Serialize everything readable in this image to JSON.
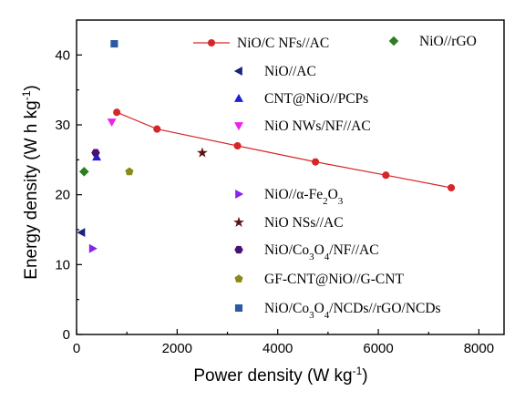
{
  "chart_data": {
    "type": "scatter",
    "xlabel": "Power density (W kg-1)",
    "ylabel": "Energy density (W h kg-1)",
    "xlim": [
      0,
      8500
    ],
    "ylim": [
      0,
      45
    ],
    "xticks": [
      0,
      2000,
      4000,
      6000,
      8000
    ],
    "yticks": [
      0,
      10,
      20,
      30,
      40
    ],
    "x_tick_labels": [
      "0",
      "2000",
      "4000",
      "6000",
      "8000"
    ],
    "y_tick_labels": [
      "0",
      "10",
      "20",
      "30",
      "40"
    ],
    "grid": false,
    "legend_placement": "inside",
    "series": [
      {
        "name": "NiO/C NFs//AC",
        "marker": "circle",
        "line": true,
        "color": "#d62728",
        "points": [
          [
            800,
            31.8
          ],
          [
            1600,
            29.4
          ],
          [
            3200,
            27.0
          ],
          [
            4750,
            24.7
          ],
          [
            6150,
            22.8
          ],
          [
            7450,
            21.0
          ]
        ]
      },
      {
        "name": "NiO//rGO",
        "marker": "diamond",
        "color": "#2e7d1f",
        "points": [
          [
            150,
            23.3
          ]
        ]
      },
      {
        "name": "NiO//AC",
        "marker": "triangle-left",
        "color": "#1a237e",
        "points": [
          [
            100,
            14.6
          ]
        ]
      },
      {
        "name": "CNT@NiO//PCPs",
        "marker": "triangle-up",
        "color": "#1f1fd6",
        "points": [
          [
            400,
            25.4
          ]
        ]
      },
      {
        "name": "NiO NWs/NF//AC",
        "marker": "triangle-down",
        "color": "#ee22ee",
        "points": [
          [
            700,
            30.4
          ]
        ]
      },
      {
        "name": "NiO//α-Fe2O3",
        "marker": "triangle-right",
        "color": "#8822ee",
        "points": [
          [
            320,
            12.3
          ]
        ]
      },
      {
        "name": "NiO NSs//AC",
        "marker": "star",
        "color": "#5d1414",
        "points": [
          [
            2500,
            26.0
          ]
        ]
      },
      {
        "name": "NiO/Co3O4/NF//AC",
        "marker": "hexagon",
        "color": "#4a1270",
        "points": [
          [
            380,
            26.0
          ]
        ]
      },
      {
        "name": "GF-CNT@NiO//G-CNT",
        "marker": "pentagon",
        "color": "#8a8a1a",
        "points": [
          [
            1050,
            23.3
          ]
        ]
      },
      {
        "name": "NiO/Co3O4/NCDs//rGO/NCDs",
        "marker": "square",
        "color": "#2c5aa0",
        "points": [
          [
            750,
            41.6
          ]
        ]
      }
    ]
  }
}
